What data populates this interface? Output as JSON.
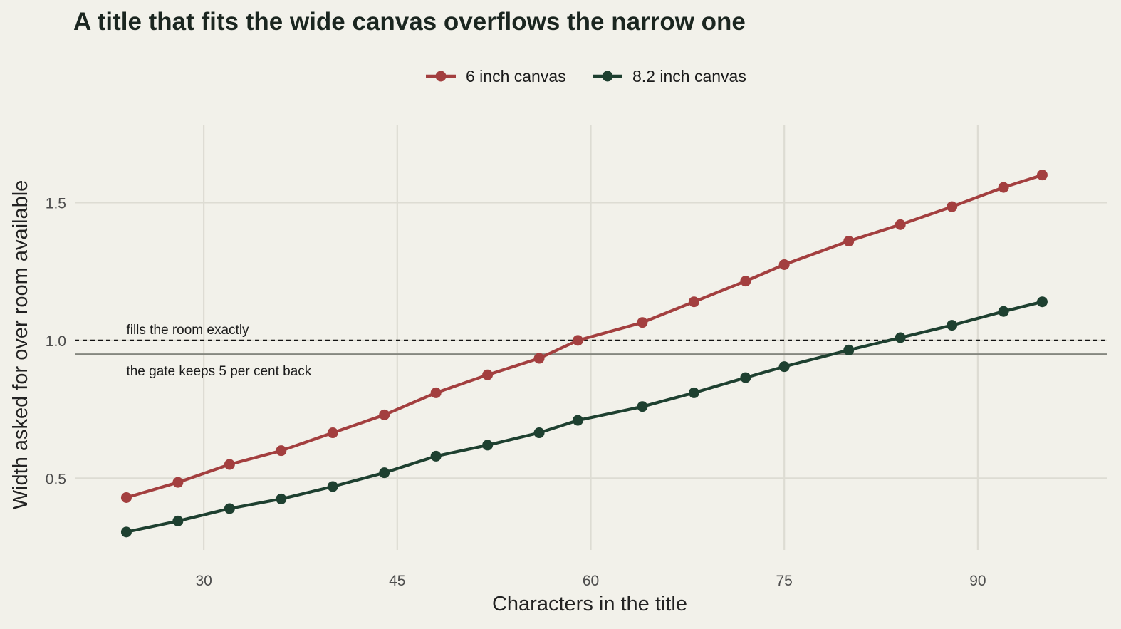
{
  "chart_data": {
    "type": "line",
    "title": "A title that fits the wide canvas overflows the narrow one",
    "xlabel": "Characters in the title",
    "ylabel": "Width asked for over room available",
    "xlim": [
      20,
      100
    ],
    "ylim": [
      0.24,
      1.78
    ],
    "xticks": [
      30,
      45,
      60,
      75,
      90
    ],
    "yticks": [
      0.5,
      1.0,
      1.5
    ],
    "ytick_labels": [
      "0.5",
      "1.0",
      "1.5"
    ],
    "grid": true,
    "legend_position": "top-center",
    "x": [
      24,
      28,
      32,
      36,
      40,
      44,
      48,
      52,
      56,
      59,
      64,
      68,
      72,
      75,
      80,
      84,
      88,
      92,
      95
    ],
    "series": [
      {
        "name": "6 inch canvas",
        "color": "#a33f3f",
        "values": [
          0.43,
          0.485,
          0.55,
          0.6,
          0.665,
          0.73,
          0.81,
          0.875,
          0.935,
          1.0,
          1.065,
          1.14,
          1.215,
          1.275,
          1.36,
          1.42,
          1.485,
          1.555,
          1.6
        ]
      },
      {
        "name": "8.2 inch canvas",
        "color": "#1e4030",
        "values": [
          0.305,
          0.345,
          0.39,
          0.425,
          0.47,
          0.52,
          0.58,
          0.62,
          0.665,
          0.71,
          0.76,
          0.81,
          0.865,
          0.905,
          0.965,
          1.01,
          1.055,
          1.105,
          1.14
        ]
      }
    ],
    "reference_lines": [
      {
        "y": 1.0,
        "style": "dotted",
        "color": "#111111",
        "label": "fills the room exactly",
        "label_position": "above"
      },
      {
        "y": 0.95,
        "style": "solid",
        "color": "#85877f",
        "label": "the gate keeps 5 per cent back",
        "label_position": "below"
      }
    ]
  }
}
